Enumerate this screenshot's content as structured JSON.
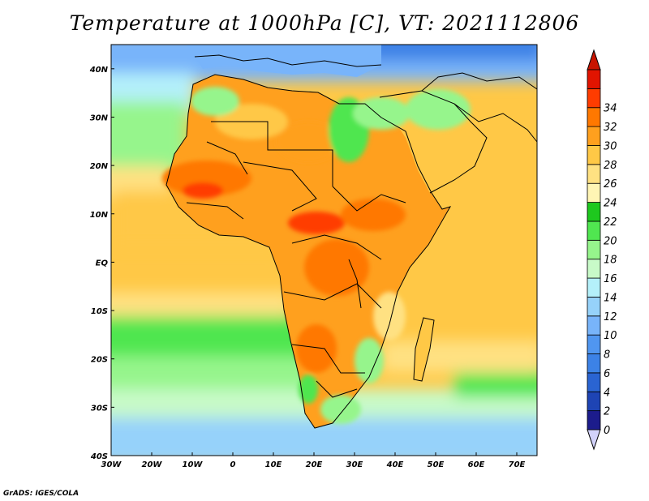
{
  "title": "Temperature at 1000hPa [C], VT: 2021112806",
  "credit": "GrADS: IGES/COLA",
  "map": {
    "projection": "lat-lon",
    "lon_range": [
      -30,
      75
    ],
    "lat_range": [
      -40,
      45
    ],
    "lon_ticks": [
      "30W",
      "20W",
      "10W",
      "0",
      "10E",
      "20E",
      "30E",
      "40E",
      "50E",
      "60E",
      "70E"
    ],
    "lat_ticks": [
      "40S",
      "30S",
      "20S",
      "10S",
      "EQ",
      "10N",
      "20N",
      "30N",
      "40N"
    ]
  },
  "colorbar": {
    "labels": [
      "0",
      "2",
      "4",
      "6",
      "8",
      "10",
      "12",
      "14",
      "16",
      "18",
      "20",
      "22",
      "24",
      "26",
      "28",
      "30",
      "32",
      "34"
    ],
    "colors": [
      "#1c1c8c",
      "#1e44b4",
      "#2a64d2",
      "#3c82e6",
      "#5096f0",
      "#78b4fa",
      "#96d2fa",
      "#b4f0fa",
      "#c8fac8",
      "#96f58c",
      "#50e650",
      "#1ec81e",
      "#fff5b4",
      "#ffe182",
      "#ffc846",
      "#ffa01e",
      "#ff7800",
      "#ff3c00",
      "#e11400"
    ],
    "below_color": "#d2d2fa",
    "above_color": "#c81400"
  }
}
